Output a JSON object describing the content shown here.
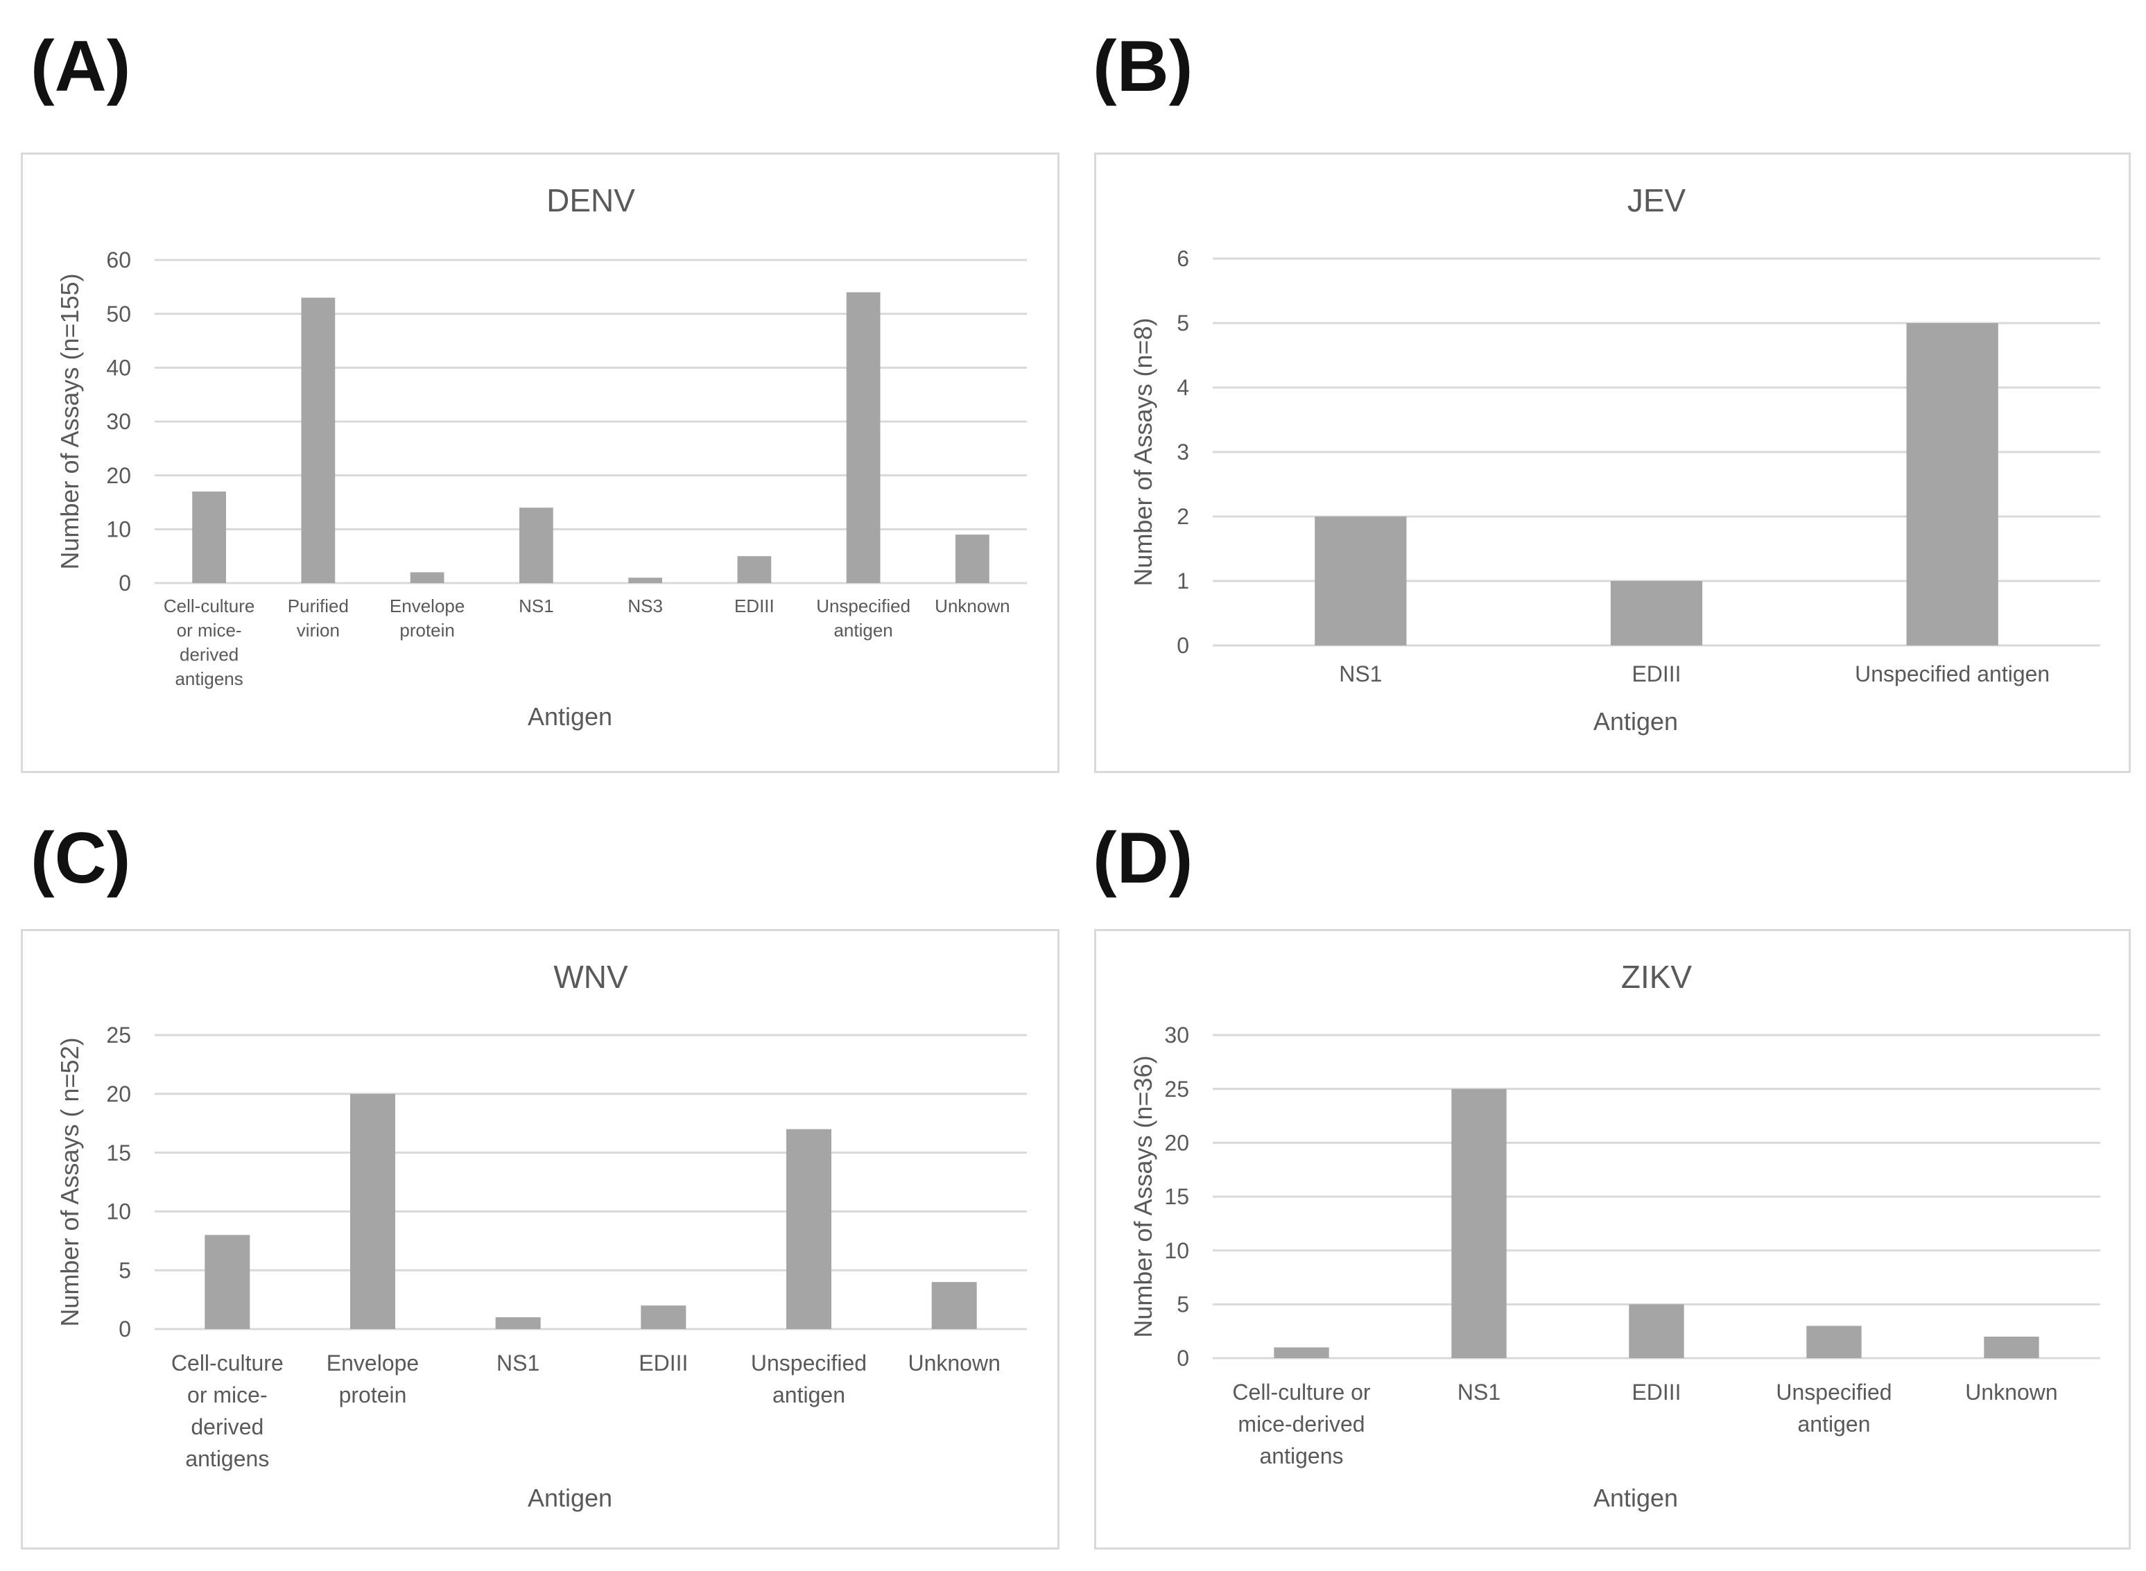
{
  "panels": [
    {
      "label": "(A)"
    },
    {
      "label": "(B)"
    },
    {
      "label": "(C)"
    },
    {
      "label": "(D)"
    }
  ],
  "chart_data": [
    {
      "type": "bar",
      "title": "DENV",
      "xlabel": "Antigen",
      "ylabel": "Number of Assays (n=155)",
      "ylim": [
        0,
        60
      ],
      "yticks": [
        0,
        10,
        20,
        30,
        40,
        50,
        60
      ],
      "categories": [
        [
          "Cell-culture",
          "or mice-",
          "derived",
          "antigens"
        ],
        [
          "Purified",
          "virion"
        ],
        [
          "Envelope",
          "protein"
        ],
        [
          "NS1"
        ],
        [
          "NS3"
        ],
        [
          "EDIII"
        ],
        [
          "Unspecified",
          "antigen"
        ],
        [
          "Unknown"
        ]
      ],
      "values": [
        17,
        53,
        2,
        14,
        1,
        5,
        54,
        9
      ],
      "bar_color": "#a5a5a5",
      "grid_color": "#d9d9d9",
      "grid": true
    },
    {
      "type": "bar",
      "title": "JEV",
      "xlabel": "Antigen",
      "ylabel": "Number of Assays (n=8)",
      "ylim": [
        0,
        6
      ],
      "yticks": [
        0,
        1,
        2,
        3,
        4,
        5,
        6
      ],
      "categories": [
        [
          "NS1"
        ],
        [
          "EDIII"
        ],
        [
          "Unspecified antigen"
        ]
      ],
      "values": [
        2,
        1,
        5
      ],
      "bar_color": "#a5a5a5",
      "grid_color": "#d9d9d9",
      "grid": true
    },
    {
      "type": "bar",
      "title": "WNV",
      "xlabel": "Antigen",
      "ylabel": "Number of Assays ( n=52)",
      "ylim": [
        0,
        25
      ],
      "yticks": [
        0,
        5,
        10,
        15,
        20,
        25
      ],
      "categories": [
        [
          "Cell-culture",
          "or mice-",
          "derived",
          "antigens"
        ],
        [
          "Envelope",
          "protein"
        ],
        [
          "NS1"
        ],
        [
          "EDIII"
        ],
        [
          "Unspecified",
          "antigen"
        ],
        [
          "Unknown"
        ]
      ],
      "values": [
        8,
        20,
        1,
        2,
        17,
        4
      ],
      "bar_color": "#a5a5a5",
      "grid_color": "#d9d9d9",
      "grid": true
    },
    {
      "type": "bar",
      "title": "ZIKV",
      "xlabel": "Antigen",
      "ylabel": "Number of Assays (n=36)",
      "ylim": [
        0,
        30
      ],
      "yticks": [
        0,
        5,
        10,
        15,
        20,
        25,
        30
      ],
      "categories": [
        [
          "Cell-culture or",
          "mice-derived",
          "antigens"
        ],
        [
          "NS1"
        ],
        [
          "EDIII"
        ],
        [
          "Unspecified",
          "antigen"
        ],
        [
          "Unknown"
        ]
      ],
      "values": [
        1,
        25,
        5,
        3,
        2
      ],
      "bar_color": "#a5a5a5",
      "grid_color": "#d9d9d9",
      "grid": true
    }
  ]
}
